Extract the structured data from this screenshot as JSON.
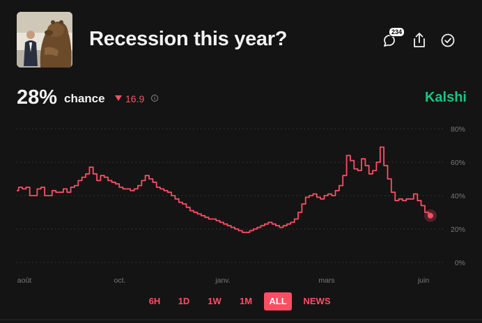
{
  "header": {
    "title": "Recession this year?",
    "comment_count": "234"
  },
  "stats": {
    "percent": "28%",
    "chance_label": "chance",
    "delta": "16.9",
    "delta_direction": "down",
    "brand": "Kalshi"
  },
  "colors": {
    "line": "#ff4e64",
    "brand": "#16c784",
    "background": "#141414"
  },
  "tabs": [
    "6H",
    "1D",
    "1W",
    "1M",
    "ALL",
    "NEWS"
  ],
  "active_tab": "ALL",
  "chart_data": {
    "type": "line",
    "title": "",
    "xlabel": "",
    "ylabel": "",
    "ylim": [
      0,
      80
    ],
    "y_ticks": [
      "0%",
      "20%",
      "40%",
      "60%",
      "80%"
    ],
    "x_tick_labels": [
      "août",
      "oct.",
      "janv.",
      "mars",
      "juin"
    ],
    "grid": true,
    "series": [
      {
        "values": [
          43,
          45,
          44,
          45,
          40,
          40,
          44,
          45,
          40,
          40,
          43,
          42,
          42,
          44,
          42,
          45,
          46,
          49,
          51,
          53,
          57,
          53,
          49,
          52,
          51,
          49,
          48,
          47,
          45,
          44,
          44,
          43,
          44,
          46,
          49,
          52,
          50,
          48,
          45,
          44,
          43,
          42,
          40,
          38,
          36,
          35,
          33,
          31,
          30,
          29,
          28,
          27,
          26,
          26,
          25,
          24,
          23,
          22,
          21,
          20,
          19,
          18,
          18,
          19,
          20,
          21,
          22,
          23,
          24,
          23,
          22,
          21,
          22,
          23,
          24,
          26,
          30,
          35,
          39,
          40,
          41,
          39,
          38,
          40,
          41,
          40,
          43,
          46,
          52,
          64,
          61,
          56,
          55,
          62,
          58,
          53,
          55,
          60,
          69,
          58,
          50,
          42,
          37,
          38,
          37,
          38,
          38,
          41,
          37,
          34,
          30,
          28
        ],
        "x_fraction_range": [
          0,
          1
        ]
      }
    ],
    "last_point_value": 28
  }
}
